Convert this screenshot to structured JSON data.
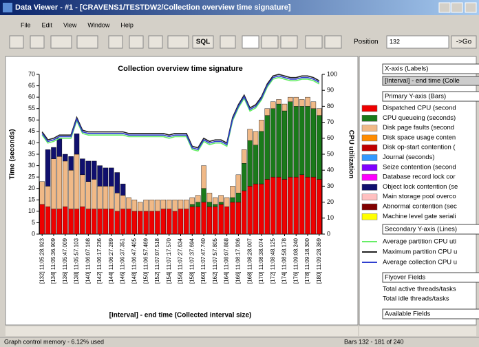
{
  "window": {
    "title": "Data Viewer - #1 - [CRAVENS1/TESTDW2/Collection overview time signature]",
    "menu": [
      "File",
      "Edit",
      "View",
      "Window",
      "Help"
    ],
    "toolbar": {
      "sql": "SQL",
      "position_label": "Position",
      "position_value": "132",
      "go": "->Go"
    },
    "status_left": "Graph control memory - 6.12% used",
    "status_right": "Bars 132 - 181 of 240"
  },
  "panel": {
    "x_header": "X-axis (Labels)",
    "x_field": "[Interval] - end time (Colle",
    "bar_header": "Primary Y-axis (Bars)",
    "others": [
      {
        "name": "Disk space usage conten",
        "color": "#ff8c00"
      },
      {
        "name": "Disk op-start contention (",
        "color": "#c00000"
      },
      {
        "name": "Journal (seconds)",
        "color": "#3399ff"
      },
      {
        "name": "Seize contention (second",
        "color": "#8000ff"
      },
      {
        "name": "Database record lock cor",
        "color": "#ff00ff"
      },
      {
        "name": "Main storage pool overco",
        "color": "#ffc0c0"
      },
      {
        "name": "Abnormal contention (sec",
        "color": "#800000"
      },
      {
        "name": "Machine level gate seriali",
        "color": "#ffff00"
      }
    ],
    "line_header": "Secondary Y-axis (Lines)",
    "flyover_header": "Flyover Fields",
    "flyover": [
      "Total active threads/tasks",
      "Total idle threads/tasks"
    ],
    "available_header": "Available Fields"
  },
  "chart_data": {
    "type": "bar",
    "title": "Collection overview time signature",
    "x_label": "[Interval] - end time (Collected interval size)",
    "y_label": "Time (seconds)",
    "y2_label": "CPU utilization",
    "stacked": true,
    "categories": [
      "[132] 11:05:28.923",
      null,
      "[134] 11:05:36.909",
      null,
      "[136] 11:05:47.009",
      null,
      "[138] 11:05:57.103",
      null,
      "[140] 11:06:07.168",
      null,
      "[142] 11:06:17.236",
      null,
      "[144] 11:06:27.289",
      null,
      "[146] 11:06:37.351",
      null,
      "[148] 11:06:47.405",
      null,
      "[150] 11:06:57.469",
      null,
      "[152] 11:07:07.518",
      null,
      "[154] 11:07:17.570",
      null,
      "[156] 11:07:27.634",
      null,
      "[158] 11:07:37.694",
      null,
      "[160] 11:07:47.740",
      null,
      "[162] 11:07:57.805",
      null,
      "[164] 11:08:07.868",
      null,
      "[166] 11:08:17.936",
      null,
      "[168] 11:08:28.007",
      null,
      "[170] 11:08:38.074",
      null,
      "[172] 11:08:48.125",
      null,
      "[174] 11:08:58.178",
      null,
      "[176] 11:09:08.240",
      null,
      "[178] 11:09:18.300",
      null,
      "[180] 11:09:28.369"
    ],
    "ylim": [
      0,
      70
    ],
    "yticks": [
      0,
      5,
      10,
      15,
      20,
      25,
      30,
      35,
      40,
      45,
      50,
      55,
      60,
      65,
      70
    ],
    "y2lim": [
      0,
      100
    ],
    "y2ticks": [
      0,
      10,
      20,
      30,
      40,
      50,
      60,
      70,
      80,
      90,
      100
    ],
    "series": [
      {
        "name": "Dispatched CPU (second",
        "color": "#ee0000",
        "values": [
          13,
          12,
          11,
          11,
          12,
          11,
          11,
          12,
          11,
          11,
          11,
          11,
          11,
          10,
          11,
          11,
          10,
          10,
          10,
          10,
          10,
          11,
          11,
          10,
          11,
          11,
          12,
          12,
          14,
          12,
          12,
          13,
          12,
          14,
          14,
          19,
          21,
          22,
          22,
          24,
          25,
          25,
          24,
          25,
          25,
          26,
          25,
          25,
          24
        ]
      },
      {
        "name": "CPU queueing (seconds)",
        "color": "#1a7a1a",
        "values": [
          0,
          0,
          0,
          0,
          0,
          0,
          0,
          0,
          0,
          0,
          0,
          0,
          0,
          0,
          0,
          0,
          0,
          0,
          0,
          0,
          0,
          0,
          0,
          0,
          0,
          0,
          1,
          2,
          6,
          2,
          1,
          1,
          0,
          2,
          4,
          12,
          20,
          17,
          23,
          28,
          30,
          32,
          30,
          33,
          31,
          30,
          31,
          30,
          28
        ]
      },
      {
        "name": "Disk page faults (second",
        "color": "#f0b987",
        "values": [
          10,
          9,
          22,
          23,
          20,
          17,
          24,
          14,
          12,
          13,
          10,
          10,
          10,
          8,
          6,
          5,
          5,
          4,
          5,
          5,
          5,
          4,
          4,
          5,
          4,
          4,
          3,
          3,
          10,
          4,
          3,
          3,
          4,
          5,
          8,
          6,
          5,
          6,
          5,
          3,
          3,
          2,
          3,
          2,
          4,
          3,
          4,
          3,
          3
        ]
      },
      {
        "name": "Object lock contention (se",
        "color": "#10106e",
        "values": [
          0,
          16,
          5,
          8,
          3,
          6,
          9,
          7,
          9,
          8,
          9,
          8,
          8,
          9,
          5,
          0,
          0,
          0,
          0,
          0,
          0,
          0,
          0,
          0,
          0,
          0,
          0,
          0,
          0,
          0,
          0,
          0,
          0,
          0,
          0,
          0,
          0,
          0,
          0,
          0,
          0,
          0,
          0,
          0,
          0,
          0,
          0,
          0,
          0
        ]
      },
      {
        "name": "Average partition CPU uti",
        "color": "#66ee66",
        "axis": "y2",
        "type": "line",
        "values": [
          62,
          57,
          58,
          60,
          60,
          60,
          71,
          63,
          62,
          62,
          62,
          62,
          62,
          62,
          62,
          61,
          61,
          61,
          61,
          61,
          61,
          61,
          60,
          61,
          61,
          61,
          53,
          52,
          58,
          56,
          57,
          57,
          55,
          71,
          79,
          85,
          77,
          79,
          84,
          92,
          97,
          98,
          97,
          96,
          96,
          97,
          97,
          96,
          94
        ]
      },
      {
        "name": "Maximum partition CPU u",
        "color": "#222222",
        "axis": "y2",
        "type": "line",
        "values": [
          64,
          59,
          60,
          62,
          62,
          62,
          73,
          65,
          64,
          64,
          64,
          64,
          64,
          64,
          64,
          63,
          63,
          63,
          63,
          63,
          63,
          63,
          62,
          63,
          63,
          63,
          55,
          54,
          60,
          58,
          59,
          59,
          57,
          73,
          81,
          87,
          79,
          81,
          86,
          94,
          99,
          100,
          99,
          98,
          98,
          99,
          99,
          98,
          96
        ]
      },
      {
        "name": "Average collection CPU u",
        "color": "#2f3fcf",
        "axis": "y2",
        "type": "line",
        "values": [
          63,
          58,
          59,
          61,
          61,
          61,
          72,
          64,
          63,
          63,
          63,
          63,
          63,
          63,
          63,
          62,
          62,
          62,
          62,
          62,
          62,
          62,
          61,
          62,
          62,
          62,
          54,
          53,
          59,
          57,
          58,
          58,
          56,
          72,
          80,
          86,
          78,
          80,
          85,
          93,
          98,
          99,
          98,
          97,
          97,
          98,
          98,
          97,
          95
        ]
      }
    ]
  }
}
